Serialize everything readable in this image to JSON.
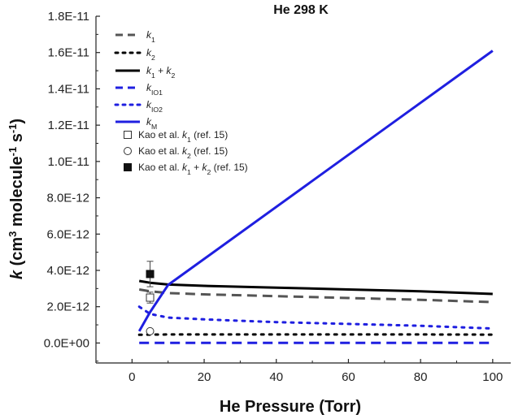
{
  "chart_data": {
    "type": "line",
    "title": "He 298 K",
    "xlabel": "He Pressure (Torr)",
    "ylabel": {
      "parts": [
        {
          "t": "k",
          "style": "italic"
        },
        {
          "t": " (cm"
        },
        {
          "t": "3",
          "shift": "sup"
        },
        {
          "t": " molecule"
        },
        {
          "t": "-1",
          "shift": "sup"
        },
        {
          "t": " s"
        },
        {
          "t": "-1",
          "shift": "sup"
        },
        {
          "t": ")"
        }
      ]
    },
    "xlim": [
      -10,
      105
    ],
    "ylim": [
      -1.1e-12,
      1.8e-11
    ],
    "xticks": [
      0,
      20,
      40,
      60,
      80,
      100
    ],
    "xtick_labels": [
      "0",
      "20",
      "40",
      "60",
      "80",
      "100"
    ],
    "yticks": [
      0,
      2e-12,
      4e-12,
      6e-12,
      8e-12,
      1e-11,
      1.2e-11,
      1.4e-11,
      1.6e-11,
      1.8e-11
    ],
    "ytick_labels": [
      "0.0E+00",
      "2.0E-12",
      "4.0E-12",
      "6.0E-12",
      "8.0E-12",
      "1.0E-11",
      "1.2E-11",
      "1.4E-11",
      "1.6E-11",
      "1.8E-11"
    ],
    "colors": {
      "gray": "#555555",
      "black": "#000000",
      "blue": "#1f1fe0"
    },
    "series": [
      {
        "name": "k1",
        "label_parts": [
          {
            "t": "k",
            "style": "italic"
          },
          {
            "t": "1",
            "shift": "sub"
          }
        ],
        "color": "gray",
        "dash": "long",
        "x": [
          2,
          5,
          10,
          20,
          40,
          60,
          80,
          100
        ],
        "y": [
          2.95e-12,
          2.85e-12,
          2.75e-12,
          2.68e-12,
          2.58e-12,
          2.48e-12,
          2.38e-12,
          2.25e-12
        ]
      },
      {
        "name": "k2",
        "label_parts": [
          {
            "t": "k",
            "style": "italic"
          },
          {
            "t": "2",
            "shift": "sub"
          }
        ],
        "color": "black",
        "dash": "dot",
        "x": [
          2,
          5,
          10,
          20,
          40,
          60,
          80,
          100
        ],
        "y": [
          4.5e-13,
          4.6e-13,
          4.7e-13,
          4.7e-13,
          4.7e-13,
          4.7e-13,
          4.7e-13,
          4.6e-13
        ]
      },
      {
        "name": "k1 + k2",
        "label_parts": [
          {
            "t": "k",
            "style": "italic"
          },
          {
            "t": "1",
            "shift": "sub"
          },
          {
            "t": " + "
          },
          {
            "t": "k",
            "style": "italic"
          },
          {
            "t": "2",
            "shift": "sub"
          }
        ],
        "color": "black",
        "dash": "solid",
        "x": [
          2,
          5,
          10,
          20,
          40,
          60,
          80,
          100
        ],
        "y": [
          3.42e-12,
          3.32e-12,
          3.22e-12,
          3.15e-12,
          3.05e-12,
          2.95e-12,
          2.85e-12,
          2.7e-12
        ]
      },
      {
        "name": "kIO1",
        "label_parts": [
          {
            "t": "k",
            "style": "italic"
          },
          {
            "t": "IO1",
            "shift": "sub"
          }
        ],
        "color": "blue",
        "dash": "long",
        "x": [
          2,
          100
        ],
        "y": [
          1e-14,
          1e-14
        ]
      },
      {
        "name": "kIO2",
        "label_parts": [
          {
            "t": "k",
            "style": "italic"
          },
          {
            "t": "IO2",
            "shift": "sub"
          }
        ],
        "color": "blue",
        "dash": "dot",
        "x": [
          2,
          5,
          10,
          20,
          40,
          60,
          80,
          100
        ],
        "y": [
          2e-12,
          1.6e-12,
          1.4e-12,
          1.3e-12,
          1.15e-12,
          1.05e-12,
          9.5e-13,
          8e-13
        ]
      },
      {
        "name": "kM",
        "label_parts": [
          {
            "t": "k",
            "style": "italic"
          },
          {
            "t": "M",
            "shift": "sub"
          }
        ],
        "color": "blue",
        "dash": "solid",
        "x": [
          2,
          5,
          10,
          100
        ],
        "y": [
          6.5e-13,
          1.7e-12,
          3.2e-12,
          1.61e-11
        ]
      }
    ],
    "points": [
      {
        "name": "Kao et al. k1 (ref. 15)",
        "label_parts": [
          {
            "t": "Kao et al. "
          },
          {
            "t": "k",
            "style": "italic"
          },
          {
            "t": "1",
            "shift": "sub"
          },
          {
            "t": " (ref. 15)"
          }
        ],
        "marker": "square-open",
        "x": 5,
        "y": 2.5e-12,
        "err": 3e-13
      },
      {
        "name": "Kao et al. k2 (ref. 15)",
        "label_parts": [
          {
            "t": "Kao et al. "
          },
          {
            "t": "k",
            "style": "italic"
          },
          {
            "t": "2",
            "shift": "sub"
          },
          {
            "t": " (ref. 15)"
          }
        ],
        "marker": "circle-open",
        "x": 5,
        "y": 6.5e-13,
        "err": 1e-13
      },
      {
        "name": "Kao et al. k1 + k2 (ref. 15)",
        "label_parts": [
          {
            "t": "Kao et al. "
          },
          {
            "t": "k",
            "style": "italic"
          },
          {
            "t": "1",
            "shift": "sub"
          },
          {
            "t": " + "
          },
          {
            "t": "k",
            "style": "italic"
          },
          {
            "t": "2",
            "shift": "sub"
          },
          {
            "t": " (ref. 15)"
          }
        ],
        "marker": "square-filled",
        "x": 5,
        "y": 3.8e-12,
        "err": 7e-13
      }
    ],
    "legend_position": "top-left"
  }
}
